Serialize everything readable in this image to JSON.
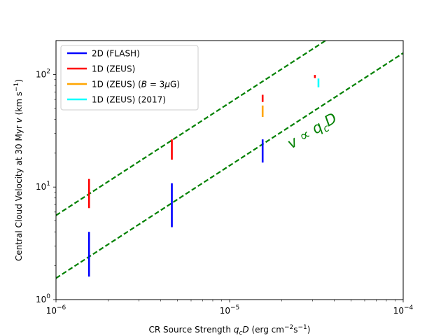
{
  "chart_data": {
    "type": "scatter",
    "title": "",
    "xlabel": "CR Source Strength q_cD (erg cm^-2 s^-1)",
    "ylabel": "Central Cloud Velocity at 30 Myr v (km s^-1)",
    "xscale": "log",
    "yscale": "log",
    "xlim": [
      1e-06,
      0.0001
    ],
    "ylim": [
      1,
      200
    ],
    "x_ticks": [
      {
        "value": 1e-06,
        "base": "10",
        "exp": "−6"
      },
      {
        "value": 1e-05,
        "base": "10",
        "exp": "−5"
      },
      {
        "value": 0.0001,
        "base": "10",
        "exp": "−4"
      }
    ],
    "y_ticks": [
      {
        "value": 1,
        "base": "10",
        "exp": "0"
      },
      {
        "value": 10,
        "base": "10",
        "exp": "1"
      },
      {
        "value": 100,
        "base": "10",
        "exp": "2"
      }
    ],
    "legend_position": "upper-left",
    "series": [
      {
        "name": "2D (FLASH)",
        "color": "#0000ff",
        "bars": [
          {
            "x": 1.55e-06,
            "ymin": 1.6,
            "ymax": 4.0
          },
          {
            "x": 4.65e-06,
            "ymin": 4.4,
            "ymax": 10.8
          },
          {
            "x": 1.55e-05,
            "ymin": 16.5,
            "ymax": 26.5
          }
        ]
      },
      {
        "name": "1D (ZEUS)",
        "color": "#ff0000",
        "bars": [
          {
            "x": 1.55e-06,
            "ymin": 6.5,
            "ymax": 11.8
          },
          {
            "x": 4.65e-06,
            "ymin": 17.5,
            "ymax": 26.5
          },
          {
            "x": 1.55e-05,
            "ymin": 57,
            "ymax": 66
          },
          {
            "x": 3.1e-05,
            "ymin": 93,
            "ymax": 99
          }
        ]
      },
      {
        "name": "1D (ZEUS) (B = 3μG)",
        "color": "#ffa500",
        "bars": [
          {
            "x": 1.55e-05,
            "ymin": 42,
            "ymax": 53
          }
        ]
      },
      {
        "name": "1D (ZEUS) (2017)",
        "color": "#00ffff",
        "bars": [
          {
            "x": 3.25e-05,
            "ymin": 77,
            "ymax": 92
          }
        ]
      }
    ],
    "reference_lines": [
      {
        "style": "dashed",
        "color": "#008000",
        "x_start": 1e-06,
        "y_start": 5.6,
        "x_end": 0.0001,
        "y_end": 560
      },
      {
        "style": "dashed",
        "color": "#008000",
        "x_start": 1e-06,
        "y_start": 1.55,
        "x_end": 0.0001,
        "y_end": 155
      }
    ],
    "annotations": [
      {
        "text": "v ∝ q_cD",
        "color": "#008000"
      }
    ]
  },
  "legend_labels": {
    "flash": "2D (FLASH)",
    "zeus": "1D (ZEUS)",
    "zeus_b_prefix": "1D (ZEUS) (",
    "zeus_b_var": "B",
    "zeus_b_mid": " = 3",
    "zeus_b_mu": "μ",
    "zeus_b_suffix": "G)",
    "zeus_2017": "1D (ZEUS) (2017)"
  },
  "labels": {
    "x_prefix": "CR Source Strength ",
    "x_q": "q",
    "x_c": "c",
    "x_D": "D",
    "x_units_open": " (erg cm",
    "x_exp1": "−2",
    "x_units_mid": "s",
    "x_exp2": "−1",
    "x_units_close": ")",
    "y_prefix": "Central Cloud Velocity at 30 Myr ",
    "y_v": "v",
    "y_units_open": " (km s",
    "y_exp": "−1",
    "y_units_close": ")",
    "annot_v": "v",
    "annot_prop": " ∝ ",
    "annot_q": "q",
    "annot_c": "c",
    "annot_D": "D"
  }
}
